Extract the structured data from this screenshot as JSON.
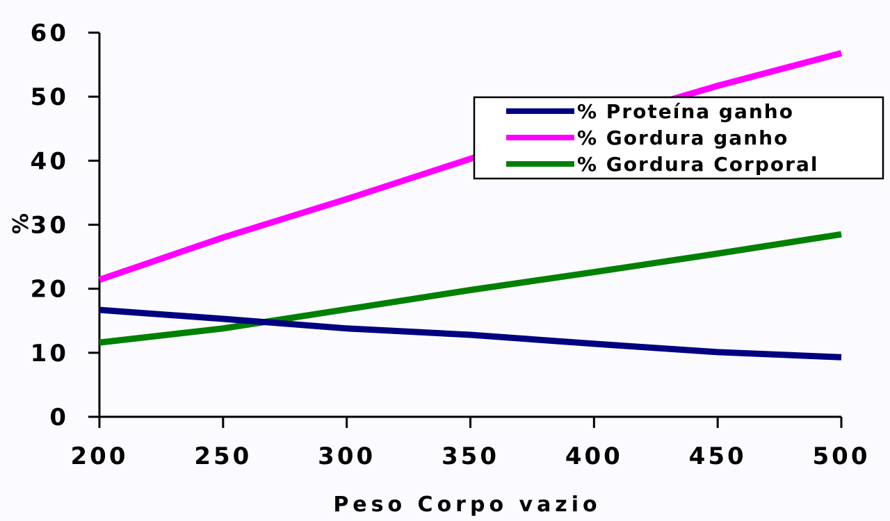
{
  "chart_data": {
    "type": "line",
    "title": "",
    "xlabel": "Peso Corpo vazio",
    "ylabel": "%",
    "xlim": [
      200,
      500
    ],
    "ylim": [
      0,
      60
    ],
    "x_ticks": [
      "200",
      "250",
      "300",
      "350",
      "400",
      "450",
      "500"
    ],
    "y_ticks": [
      "0",
      "10",
      "20",
      "30",
      "40",
      "50",
      "60"
    ],
    "grid": false,
    "legend_position": "top-right",
    "x": [
      200,
      250,
      300,
      350,
      400,
      450,
      500
    ],
    "series": [
      {
        "name": "% Proteína ganho",
        "color": "#000080",
        "values": [
          16.7,
          15.3,
          13.8,
          12.8,
          11.4,
          10.1,
          9.3
        ]
      },
      {
        "name": "% Gordura ganho",
        "color": "#ff00ff",
        "values": [
          21.4,
          28,
          34,
          40.3,
          46,
          51.7,
          56.8
        ]
      },
      {
        "name": "% Gordura Corporal",
        "color": "#008000",
        "values": [
          11.6,
          13.8,
          16.8,
          19.8,
          22.6,
          25.5,
          28.5
        ]
      }
    ]
  }
}
